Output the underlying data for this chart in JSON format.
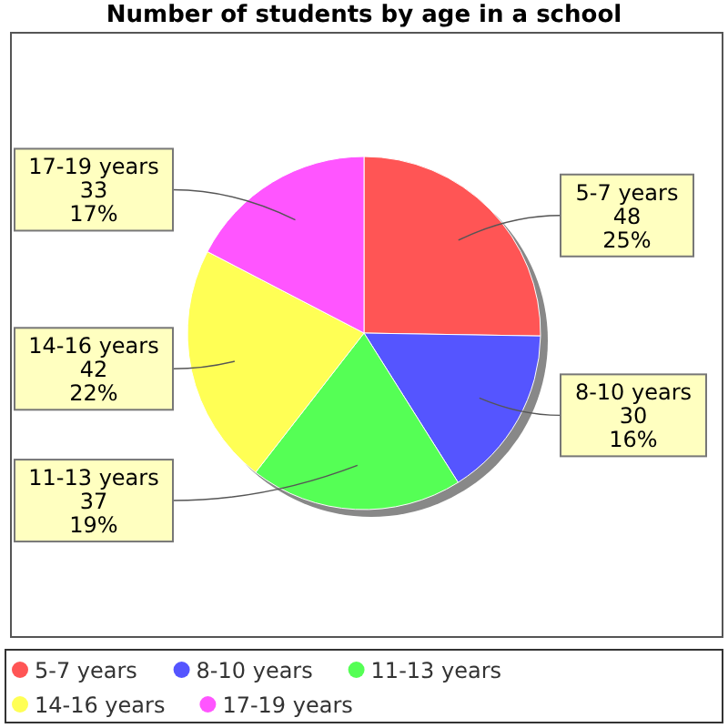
{
  "chart_data": {
    "type": "pie",
    "title": "Number of students by age in a school",
    "categories": [
      "5-7 years",
      "8-10 years",
      "11-13 years",
      "14-16 years",
      "17-19 years"
    ],
    "values": [
      48,
      30,
      37,
      42,
      33
    ],
    "colors": [
      "#ff5555",
      "#5555ff",
      "#55ff55",
      "#ffff55",
      "#ff55ff"
    ],
    "value_labels": [
      "48\n25%",
      "30\n16%",
      "37\n19%",
      "42\n22%",
      "33\n17%"
    ],
    "legend": "bottom"
  }
}
